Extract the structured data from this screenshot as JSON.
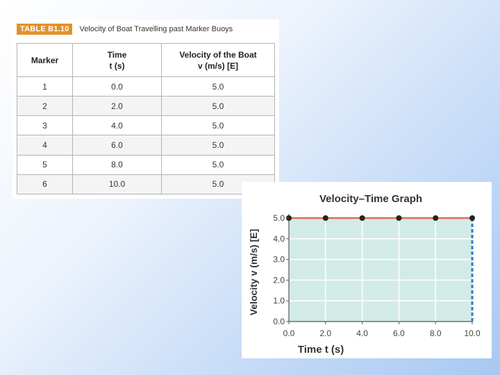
{
  "table": {
    "caption_tag": "TABLE B1.10",
    "caption_title": "Velocity of Boat Travelling past Marker Buoys",
    "headers": {
      "marker": "Marker",
      "time_line1": "Time",
      "time_line2": "t (s)",
      "velocity_line1": "Velocity of the Boat",
      "velocity_line2": "v (m/s) [E]"
    },
    "rows": [
      {
        "marker": "1",
        "time": "0.0",
        "velocity": "5.0"
      },
      {
        "marker": "2",
        "time": "2.0",
        "velocity": "5.0"
      },
      {
        "marker": "3",
        "time": "4.0",
        "velocity": "5.0"
      },
      {
        "marker": "4",
        "time": "6.0",
        "velocity": "5.0"
      },
      {
        "marker": "5",
        "time": "8.0",
        "velocity": "5.0"
      },
      {
        "marker": "6",
        "time": "10.0",
        "velocity": "5.0"
      }
    ]
  },
  "chart_data": {
    "type": "line",
    "title": "Velocity–Time Graph",
    "xlabel": "Time t (s)",
    "ylabel": "Velocity v (m/s) [E]",
    "x": [
      0,
      2,
      4,
      6,
      8,
      10
    ],
    "series": [
      {
        "values": [
          5,
          5,
          5,
          5,
          5,
          5
        ]
      }
    ],
    "xlim": [
      0,
      10
    ],
    "ylim": [
      0,
      5
    ],
    "x_ticks": [
      "0.0",
      "2.0",
      "4.0",
      "6.0",
      "8.0",
      "10.0"
    ],
    "y_ticks": [
      "0.0",
      "1.0",
      "2.0",
      "3.0",
      "4.0",
      "5.0"
    ],
    "grid": true,
    "area_fill": true,
    "colors": {
      "line": "#e06a5a",
      "fill": "#d3ebe7",
      "points": "#222222",
      "dashed": "#2f7fc0",
      "grid": "#ffffff"
    }
  }
}
